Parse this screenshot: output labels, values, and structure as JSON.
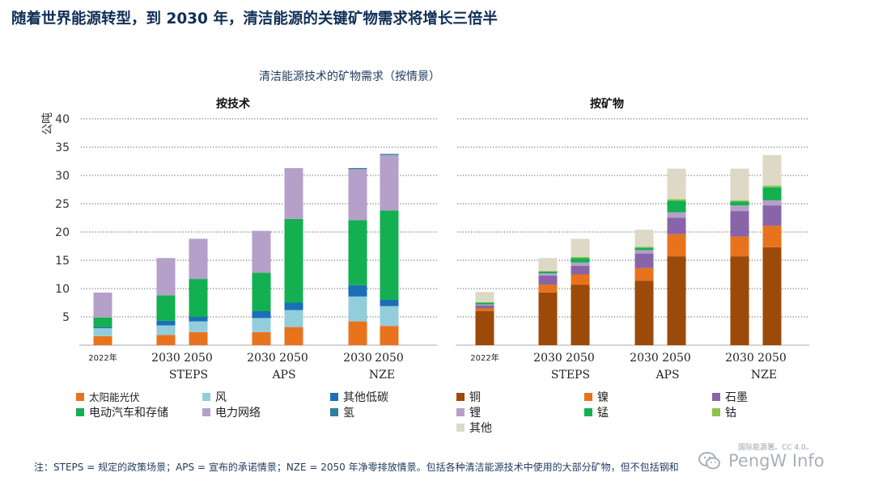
{
  "header": {
    "title": "随着世界能源转型，到 2030 年，清洁能源的关键矿物需求将增长三倍半",
    "subtitle": "清洁能源技术的矿物需求（按情景）"
  },
  "chart_data": [
    {
      "type": "bar",
      "stacked": true,
      "title": "按技术",
      "ylabel": "公吨",
      "ylim": [
        0,
        40
      ],
      "yticks": [
        5,
        10,
        15,
        20,
        25,
        30,
        35,
        40
      ],
      "grid": true,
      "categories": [
        "2022年",
        "2030",
        "2050",
        "2030",
        "2050",
        "2030",
        "2050"
      ],
      "groups": [
        "STEPS",
        "APS",
        "NZE"
      ],
      "series": [
        {
          "name": "太阳能光伏",
          "color": "#e8731c",
          "values": [
            1.6,
            1.8,
            2.3,
            2.3,
            3.2,
            4.2,
            3.4
          ]
        },
        {
          "name": "风",
          "color": "#92cddc",
          "values": [
            1.4,
            1.7,
            1.9,
            2.5,
            3.0,
            4.4,
            3.5
          ]
        },
        {
          "name": "其他低碳",
          "color": "#1c6eb8",
          "values": [
            0.2,
            0.8,
            0.8,
            1.2,
            1.3,
            2.0,
            1.1
          ]
        },
        {
          "name": "电动汽车和存储",
          "color": "#12b050",
          "values": [
            1.7,
            4.5,
            6.7,
            6.8,
            14.8,
            11.5,
            15.8
          ]
        },
        {
          "name": "电力网络",
          "color": "#b4a0c9",
          "values": [
            4.4,
            6.6,
            7.1,
            7.4,
            9.0,
            9.0,
            9.8
          ]
        },
        {
          "name": "氢",
          "color": "#2e7f99",
          "values": [
            0.0,
            0.0,
            0.0,
            0.0,
            0.0,
            0.2,
            0.2
          ]
        }
      ]
    },
    {
      "type": "bar",
      "stacked": true,
      "title": "按矿物",
      "ylim": [
        0,
        40
      ],
      "grid": true,
      "categories": [
        "2022年",
        "2030",
        "2050",
        "2030",
        "2050",
        "2030",
        "2050"
      ],
      "groups": [
        "STEPS",
        "APS",
        "NZE"
      ],
      "series": [
        {
          "name": "铜",
          "color": "#9c4a0a",
          "values": [
            6.0,
            9.3,
            10.7,
            11.4,
            15.7,
            15.7,
            17.3
          ]
        },
        {
          "name": "镍",
          "color": "#e8731c",
          "values": [
            0.5,
            1.4,
            1.8,
            2.2,
            3.9,
            3.5,
            3.8
          ]
        },
        {
          "name": "石墨",
          "color": "#8a64a8",
          "values": [
            0.5,
            1.6,
            1.5,
            2.6,
            2.9,
            4.5,
            3.6
          ]
        },
        {
          "name": "锂",
          "color": "#b4a0c9",
          "values": [
            0.2,
            0.4,
            0.6,
            0.6,
            1.0,
            1.0,
            0.9
          ]
        },
        {
          "name": "锰",
          "color": "#12b050",
          "values": [
            0.3,
            0.3,
            0.8,
            0.4,
            2.0,
            0.7,
            2.3
          ]
        },
        {
          "name": "钴",
          "color": "#8bc34a",
          "values": [
            0.1,
            0.1,
            0.2,
            0.2,
            0.3,
            0.2,
            0.3
          ]
        },
        {
          "name": "其他",
          "color": "#ded9c6",
          "values": [
            1.8,
            2.3,
            3.2,
            3.0,
            5.4,
            5.6,
            5.4
          ]
        }
      ]
    }
  ],
  "legend_tech": [
    {
      "label": "太阳能光伏",
      "color": "#e8731c"
    },
    {
      "label": "风",
      "color": "#92cddc"
    },
    {
      "label": "其他低碳",
      "color": "#1c6eb8"
    },
    {
      "label": "电动汽车和存储",
      "color": "#12b050"
    },
    {
      "label": "电力网络",
      "color": "#b4a0c9"
    },
    {
      "label": "氢",
      "color": "#2e7f99"
    }
  ],
  "legend_mineral": [
    {
      "label": "铜",
      "color": "#9c4a0a"
    },
    {
      "label": "镍",
      "color": "#e8731c"
    },
    {
      "label": "石墨",
      "color": "#8a64a8"
    },
    {
      "label": "锂",
      "color": "#b4a0c9"
    },
    {
      "label": "锰",
      "color": "#12b050"
    },
    {
      "label": "钴",
      "color": "#8bc34a"
    },
    {
      "label": "其他",
      "color": "#ded9c6"
    }
  ],
  "footer": {
    "note": "注：STEPS = 规定的政策场景；APS = 宣布的承诺情景；NZE = 2050 年净零排放情景。包括各种清洁能源技术中使用的大部分矿物，但不包括钢和",
    "credit": "国际能源署。CC 4.0。",
    "watermark": "PengW Info"
  }
}
